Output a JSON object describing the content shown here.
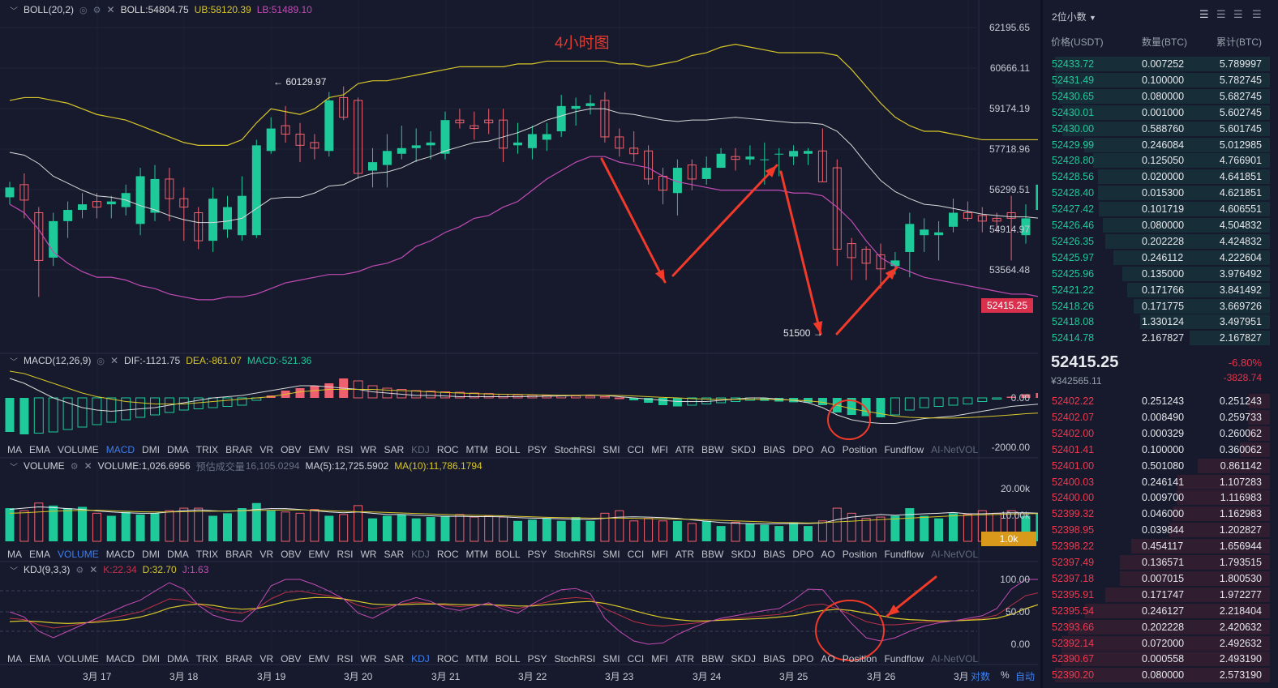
{
  "title_annotation": "4小时图",
  "boll_legend": {
    "name": "BOLL(20,2)",
    "boll": "BOLL:54804.75",
    "ub": "UB:58120.39",
    "lb": "LB:51489.10"
  },
  "macd_legend": {
    "name": "MACD(12,26,9)",
    "dif": "DIF:-1121.75",
    "dea": "DEA:-861.07",
    "macd": "MACD:-521.36"
  },
  "volume_legend": {
    "name": "VOLUME",
    "volume": "VOLUME:1,026.6956",
    "est_label": "预估成交量",
    "est_value": "16,105.0294",
    "ma5": "MA(5):12,725.5902",
    "ma10": "MA(10):11,786.1794"
  },
  "kdj_legend": {
    "name": "KDJ(9,3,3)",
    "k": "K:22.34",
    "d": "D:32.70",
    "j": "J:1.63"
  },
  "indicator_tabs": [
    "MA",
    "EMA",
    "VOLUME",
    "MACD",
    "DMI",
    "DMA",
    "TRIX",
    "BRAR",
    "VR",
    "OBV",
    "EMV",
    "RSI",
    "WR",
    "SAR",
    "KDJ",
    "ROC",
    "MTM",
    "BOLL",
    "PSY",
    "StochRSI",
    "SMI",
    "CCI",
    "MFI",
    "ATR",
    "BBW",
    "SKDJ",
    "BIAS",
    "DPO",
    "AO",
    "Position",
    "Fundflow",
    "AI-NetVOL"
  ],
  "price_axis": [
    "62195.65",
    "60666.11",
    "59174.19",
    "57718.96",
    "56299.51",
    "54914.97",
    "53564.48"
  ],
  "current_price_tag": "52415.25",
  "macd_axis": [
    "0.00",
    "-2000.00"
  ],
  "volume_axis": [
    "20.00k",
    "10.00k"
  ],
  "volume_tag": "1.0k",
  "kdj_axis": [
    "100.00",
    "50.00",
    "0.00"
  ],
  "time_axis": [
    "3月 17",
    "3月 18",
    "3月 19",
    "3月 20",
    "3月 21",
    "3月 22",
    "3月 23",
    "3月 24",
    "3月 25",
    "3月 26",
    "3月"
  ],
  "axis_controls": {
    "log": "对数",
    "pct": "%",
    "auto": "自动"
  },
  "high_label": "← 60129.97",
  "low_label": "51500 →",
  "orderbook": {
    "decimals": "2位小数",
    "headers": {
      "price": "价格(USDT)",
      "qty": "数量(BTC)",
      "total": "累计(BTC)"
    },
    "asks": [
      {
        "p": "52433.72",
        "q": "0.007252",
        "t": "5.789997"
      },
      {
        "p": "52431.49",
        "q": "0.100000",
        "t": "5.782745"
      },
      {
        "p": "52430.65",
        "q": "0.080000",
        "t": "5.682745"
      },
      {
        "p": "52430.01",
        "q": "0.001000",
        "t": "5.602745"
      },
      {
        "p": "52430.00",
        "q": "0.588760",
        "t": "5.601745"
      },
      {
        "p": "52429.99",
        "q": "0.246084",
        "t": "5.012985"
      },
      {
        "p": "52428.80",
        "q": "0.125050",
        "t": "4.766901"
      },
      {
        "p": "52428.56",
        "q": "0.020000",
        "t": "4.641851"
      },
      {
        "p": "52428.40",
        "q": "0.015300",
        "t": "4.621851"
      },
      {
        "p": "52427.42",
        "q": "0.101719",
        "t": "4.606551"
      },
      {
        "p": "52426.46",
        "q": "0.080000",
        "t": "4.504832"
      },
      {
        "p": "52426.35",
        "q": "0.202228",
        "t": "4.424832"
      },
      {
        "p": "52425.97",
        "q": "0.246112",
        "t": "4.222604"
      },
      {
        "p": "52425.96",
        "q": "0.135000",
        "t": "3.976492"
      },
      {
        "p": "52421.22",
        "q": "0.171766",
        "t": "3.841492"
      },
      {
        "p": "52418.26",
        "q": "0.171775",
        "t": "3.669726"
      },
      {
        "p": "52418.08",
        "q": "1.330124",
        "t": "3.497951"
      },
      {
        "p": "52414.78",
        "q": "2.167827",
        "t": "2.167827"
      }
    ],
    "last_price": "52415.25",
    "last_price_cny": "¥342565.11",
    "change_pct": "-6.80%",
    "change_abs": "-3828.74",
    "bids": [
      {
        "p": "52402.22",
        "q": "0.251243",
        "t": "0.251243"
      },
      {
        "p": "52402.07",
        "q": "0.008490",
        "t": "0.259733"
      },
      {
        "p": "52402.00",
        "q": "0.000329",
        "t": "0.260062"
      },
      {
        "p": "52401.41",
        "q": "0.100000",
        "t": "0.360062"
      },
      {
        "p": "52401.00",
        "q": "0.501080",
        "t": "0.861142"
      },
      {
        "p": "52400.03",
        "q": "0.246141",
        "t": "1.107283"
      },
      {
        "p": "52400.00",
        "q": "0.009700",
        "t": "1.116983"
      },
      {
        "p": "52399.32",
        "q": "0.046000",
        "t": "1.162983"
      },
      {
        "p": "52398.95",
        "q": "0.039844",
        "t": "1.202827"
      },
      {
        "p": "52398.22",
        "q": "0.454117",
        "t": "1.656944"
      },
      {
        "p": "52397.49",
        "q": "0.136571",
        "t": "1.793515"
      },
      {
        "p": "52397.18",
        "q": "0.007015",
        "t": "1.800530"
      },
      {
        "p": "52395.91",
        "q": "0.171747",
        "t": "1.972277"
      },
      {
        "p": "52395.54",
        "q": "0.246127",
        "t": "2.218404"
      },
      {
        "p": "52393.66",
        "q": "0.202228",
        "t": "2.420632"
      },
      {
        "p": "52392.14",
        "q": "0.072000",
        "t": "2.492632"
      },
      {
        "p": "52390.67",
        "q": "0.000558",
        "t": "2.493190"
      },
      {
        "p": "52390.20",
        "q": "0.080000",
        "t": "2.573190"
      }
    ]
  },
  "colors": {
    "up": "#1ec99a",
    "down": "#f0616f",
    "ask": "#1ec99a",
    "bid": "#f0384f",
    "boll_mid": "#d9d9d9",
    "boll_ub": "#d8c62a",
    "boll_lb": "#c24cb5",
    "annotation": "#f23a2a"
  }
}
